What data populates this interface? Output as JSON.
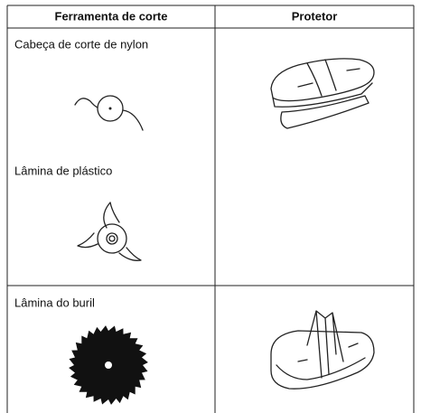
{
  "table": {
    "header": [
      "Ferramenta de corte",
      "Protetor"
    ],
    "rows": [
      {
        "tools": [
          "Cabeça de corte de nylon",
          "Lâmina de plástico"
        ]
      },
      {
        "tools": [
          "Lâmina do buril"
        ]
      }
    ]
  }
}
